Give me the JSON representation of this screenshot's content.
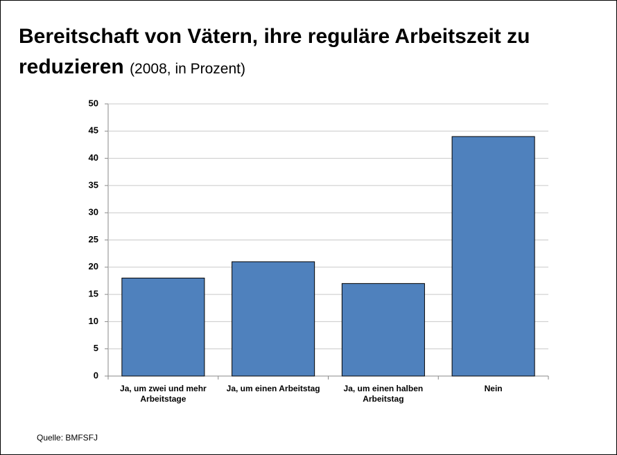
{
  "chart_data": {
    "type": "bar",
    "title": "Bereitschaft von Vätern, ihre reguläre Arbeitszeit zu reduzieren",
    "subtitle": "(2008, in Prozent)",
    "categories": [
      "Ja, um zwei und mehr Arbeitstage",
      "Ja, um einen Arbeitstag",
      "Ja, um einen halben Arbeitstag",
      "Nein"
    ],
    "values": [
      18,
      21,
      17,
      44
    ],
    "color": "#4f81bd",
    "ylim": [
      0,
      50
    ],
    "yticks": [
      0,
      5,
      10,
      15,
      20,
      25,
      30,
      35,
      40,
      45,
      50
    ],
    "grid": true,
    "source": "Quelle: BMFSFJ"
  }
}
